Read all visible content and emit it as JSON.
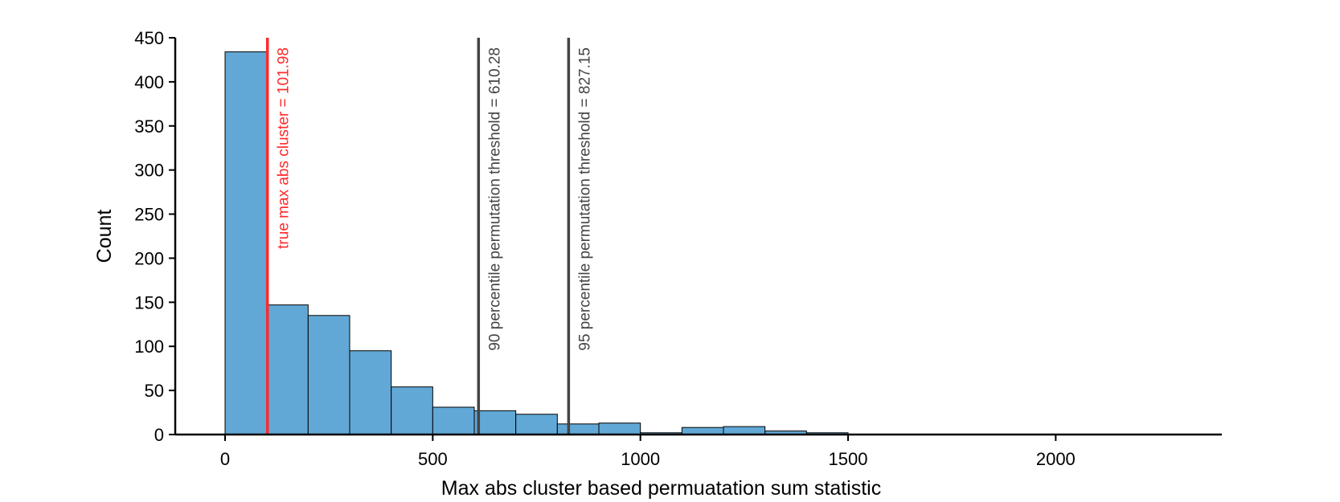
{
  "chart_data": {
    "type": "bar",
    "title": "",
    "xlabel": "Max abs cluster based permuatation sum statistic",
    "ylabel": "Count",
    "xlim": [
      -120,
      2400
    ],
    "ylim": [
      0,
      450
    ],
    "grid": false,
    "legend": "none",
    "bin_edges": [
      0,
      100,
      200,
      300,
      400,
      500,
      600,
      700,
      800,
      900,
      1000,
      1100,
      1200,
      1300,
      1400,
      1500
    ],
    "counts": [
      434,
      147,
      135,
      95,
      54,
      31,
      27,
      23,
      12,
      13,
      2,
      8,
      9,
      4,
      2
    ],
    "x_ticks": [
      0,
      500,
      1000,
      1500,
      2000
    ],
    "x_tick_labels": [
      "0",
      "500",
      "1000",
      "1500",
      "2000"
    ],
    "y_ticks": [
      0,
      50,
      100,
      150,
      200,
      250,
      300,
      350,
      400,
      450
    ],
    "y_tick_labels": [
      "0",
      "50",
      "100",
      "150",
      "200",
      "250",
      "300",
      "350",
      "400",
      "450"
    ],
    "ref_lines": [
      {
        "x": 101.98,
        "label": "true max abs cluster = 101.98",
        "color": "#ff2a2a"
      },
      {
        "x": 610.28,
        "label": "90 percentile permutation threshold = 610.28",
        "color": "#444444"
      },
      {
        "x": 827.15,
        "label": "95 percentile permutation threshold = 827.15",
        "color": "#444444"
      }
    ],
    "colors": {
      "bar_fill": "#62a8d6",
      "bar_edge": "#000000",
      "axis": "#000000"
    }
  }
}
